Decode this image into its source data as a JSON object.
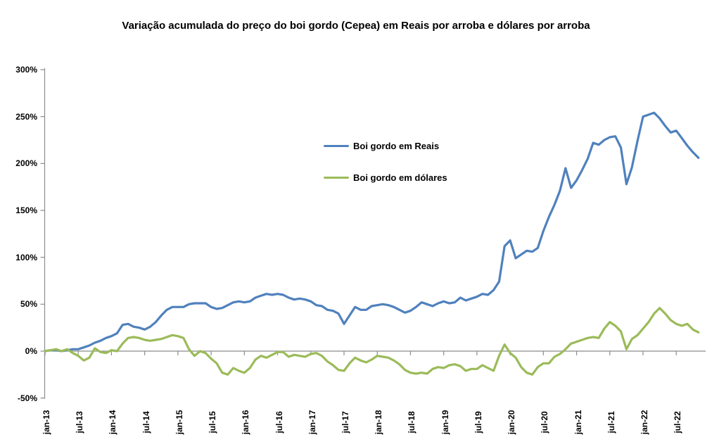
{
  "title": "Variação acumulada do preço do boi gordo (Cepea) em Reais por arroba e dólares por arroba",
  "legend": {
    "items": [
      {
        "label": "Boi gordo em Reais",
        "color": "#4F81BD"
      },
      {
        "label": "Boi gordo em dólares",
        "color": "#9BBB59"
      }
    ]
  },
  "axes": {
    "y_ticks": [
      {
        "label": "300%",
        "value": 300
      },
      {
        "label": "250%",
        "value": 250
      },
      {
        "label": "200%",
        "value": 200
      },
      {
        "label": "150%",
        "value": 150
      },
      {
        "label": "100%",
        "value": 100
      },
      {
        "label": "50%",
        "value": 50
      },
      {
        "label": "0%",
        "value": 0
      },
      {
        "label": "-50%",
        "value": -50
      }
    ],
    "x_tick_labels": [
      "jan-13",
      "jul-13",
      "jan-14",
      "jul-14",
      "jan-15",
      "jul-15",
      "jan-16",
      "jul-16",
      "jan-17",
      "jul-17",
      "jan-18",
      "jul-18",
      "jan-19",
      "jul-19",
      "jan-20",
      "jul-20",
      "jan-21",
      "jul-21",
      "jan-22",
      "jul-22"
    ],
    "axis_color": "#8C8C8C"
  },
  "chart_data": {
    "type": "line",
    "title": "Variação acumulada do preço do boi gordo (Cepea) em Reais por arroba e dólares por arroba",
    "xlabel": "",
    "ylabel": "",
    "ylim": [
      -50,
      300
    ],
    "grid": false,
    "zero_line": true,
    "legend_position": "inside-center-left",
    "frequency": "monthly",
    "x_start": "jan-13",
    "x_end": "nov-22",
    "x_tick_interval_months": 6,
    "units": "percent cumulative variation",
    "series": [
      {
        "name": "Boi gordo em Reais",
        "color": "#4F81BD",
        "values": [
          0,
          1,
          1,
          0,
          1,
          2,
          2,
          4,
          6,
          9,
          11,
          14,
          16,
          19,
          28,
          29,
          26,
          25,
          23,
          26,
          31,
          38,
          44,
          47,
          47,
          47,
          50,
          51,
          51,
          51,
          47,
          45,
          46,
          49,
          52,
          53,
          52,
          53,
          57,
          59,
          61,
          60,
          61,
          60,
          57,
          55,
          56,
          55,
          53,
          49,
          48,
          44,
          43,
          40,
          29,
          38,
          47,
          44,
          44,
          48,
          49,
          50,
          49,
          47,
          44,
          41,
          43,
          47,
          52,
          50,
          48,
          51,
          53,
          51,
          52,
          57,
          54,
          56,
          58,
          61,
          60,
          65,
          74,
          112,
          118,
          99,
          103,
          107,
          106,
          110,
          128,
          143,
          156,
          171,
          195,
          174,
          182,
          193,
          205,
          222,
          220,
          225,
          228,
          229,
          217,
          178,
          196,
          224,
          250,
          252,
          254,
          248,
          240,
          233,
          235,
          227,
          219,
          212,
          206
        ]
      },
      {
        "name": "Boi gordo em dólares",
        "color": "#9BBB59",
        "values": [
          0,
          1,
          2,
          0,
          2,
          -2,
          -5,
          -10,
          -7,
          3,
          -1,
          -2,
          1,
          0,
          8,
          14,
          15,
          14,
          12,
          11,
          12,
          13,
          15,
          17,
          16,
          14,
          2,
          -5,
          0,
          -2,
          -8,
          -13,
          -23,
          -25,
          -18,
          -21,
          -23,
          -18,
          -9,
          -5,
          -7,
          -4,
          -1,
          -1,
          -6,
          -4,
          -5,
          -6,
          -3,
          -2,
          -5,
          -11,
          -15,
          -20,
          -21,
          -13,
          -7,
          -10,
          -12,
          -9,
          -5,
          -6,
          -7,
          -10,
          -14,
          -20,
          -23,
          -24,
          -23,
          -24,
          -19,
          -17,
          -18,
          -15,
          -14,
          -16,
          -21,
          -19,
          -19,
          -15,
          -18,
          -21,
          -5,
          7,
          -2,
          -7,
          -17,
          -23,
          -25,
          -17,
          -13,
          -13,
          -6,
          -3,
          2,
          8,
          10,
          12,
          14,
          15,
          14,
          24,
          31,
          27,
          21,
          2,
          13,
          17,
          24,
          31,
          40,
          46,
          40,
          33,
          29,
          27,
          29,
          23,
          20
        ]
      }
    ]
  },
  "colors": {
    "background": "#FFFFFF",
    "text": "#000000",
    "axis": "#8C8C8C"
  }
}
